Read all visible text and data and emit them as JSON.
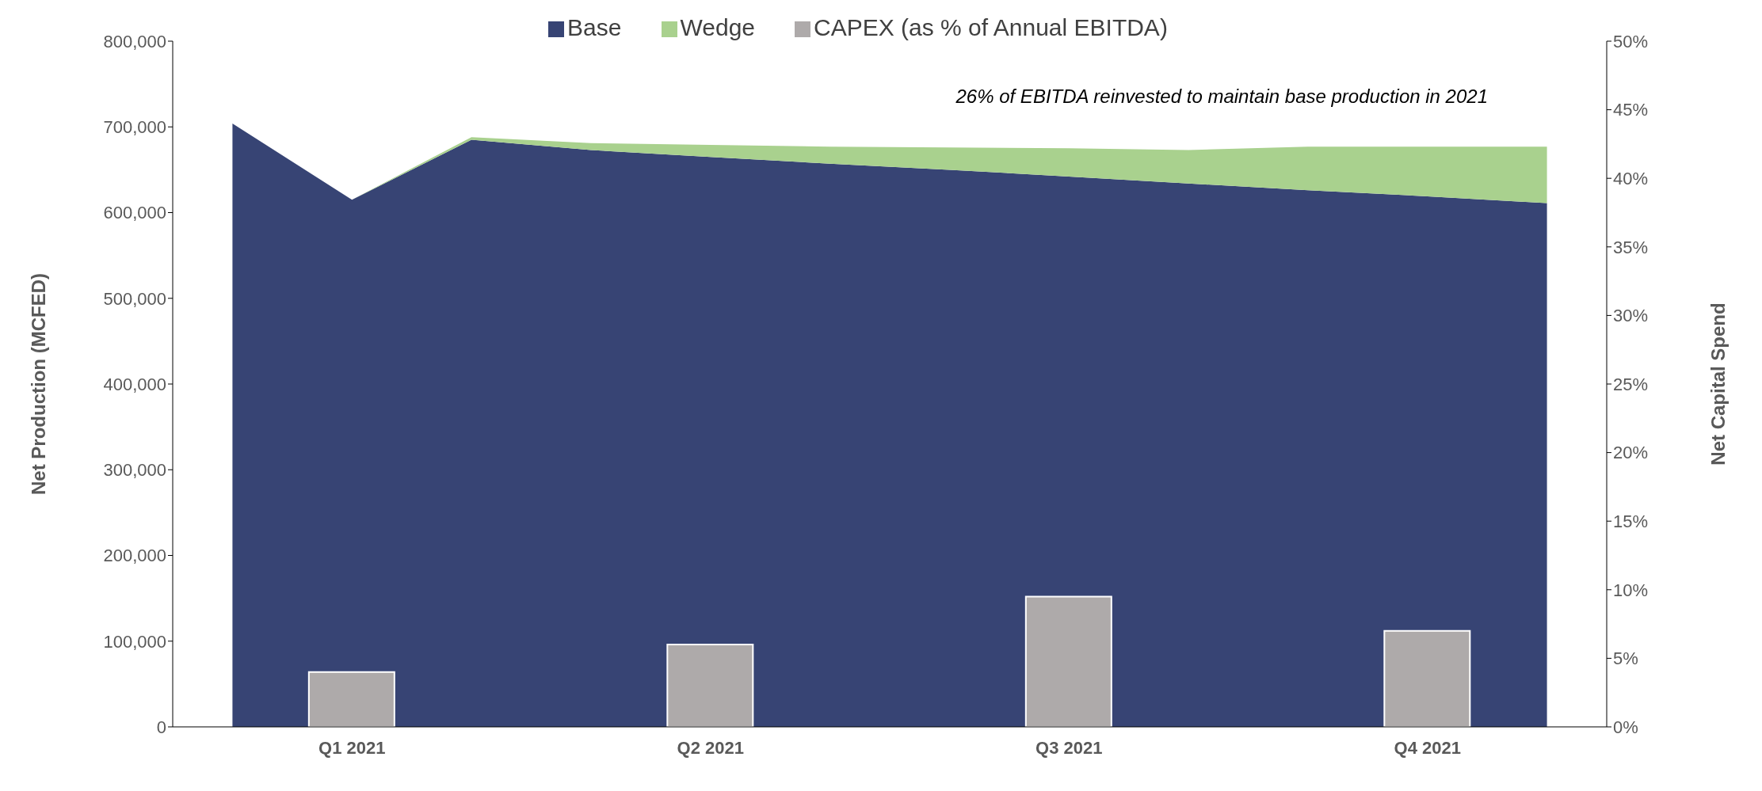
{
  "chart_data": {
    "type": "area",
    "stacked": true,
    "categories": [
      null,
      "Q1 2021",
      null,
      null,
      "Q2 2021",
      null,
      null,
      "Q3 2021",
      null,
      null,
      "Q4 2021",
      null
    ],
    "series": [
      {
        "name": "Base",
        "color": "#374474",
        "values": [
          704000,
          615000,
          685000,
          673000,
          665000,
          657000,
          650000,
          642000,
          634000,
          626000,
          619000,
          611000
        ]
      },
      {
        "name": "Wedge",
        "color": "#a9d18e",
        "values": [
          0,
          0,
          3000,
          8000,
          14000,
          20000,
          26000,
          33000,
          39000,
          51000,
          58000,
          66000
        ]
      },
      {
        "name": "CAPEX (as % of Annual EBITDA)",
        "type": "bar",
        "axis": "y2",
        "color": "#aeaaaa",
        "values": [
          null,
          4,
          null,
          null,
          6,
          null,
          null,
          9.5,
          null,
          null,
          7,
          null
        ]
      }
    ],
    "ylabel": "Net Production  (MCFED)",
    "y2label": "Net Capital Spend",
    "ylim": [
      0,
      800000
    ],
    "yticks": [
      0,
      {
        "value": 100000,
        "label": "100,000"
      },
      {
        "value": 200000,
        "label": "200,000"
      },
      {
        "value": 300000,
        "label": "300,000"
      },
      {
        "value": 400000,
        "label": "400,000"
      },
      {
        "value": 500000,
        "label": "500,000"
      },
      {
        "value": 600000,
        "label": "600,000"
      },
      {
        "value": 700000,
        "label": "700,000"
      },
      {
        "value": 800000,
        "label": "800,000"
      }
    ],
    "y2lim": [
      0,
      50
    ],
    "y2ticks": [
      {
        "value": 0,
        "label": "0%"
      },
      {
        "value": 5,
        "label": "5%"
      },
      {
        "value": 10,
        "label": "10%"
      },
      {
        "value": 15,
        "label": "15%"
      },
      {
        "value": 20,
        "label": "20%"
      },
      {
        "value": 25,
        "label": "25%"
      },
      {
        "value": 30,
        "label": "30%"
      },
      {
        "value": 35,
        "label": "35%"
      },
      {
        "value": 40,
        "label": "40%"
      },
      {
        "value": 45,
        "label": "45%"
      },
      {
        "value": 50,
        "label": "50%"
      }
    ],
    "annotations": [
      "26% of EBITDA reinvested to maintain base production in 2021"
    ],
    "legend": "top"
  }
}
